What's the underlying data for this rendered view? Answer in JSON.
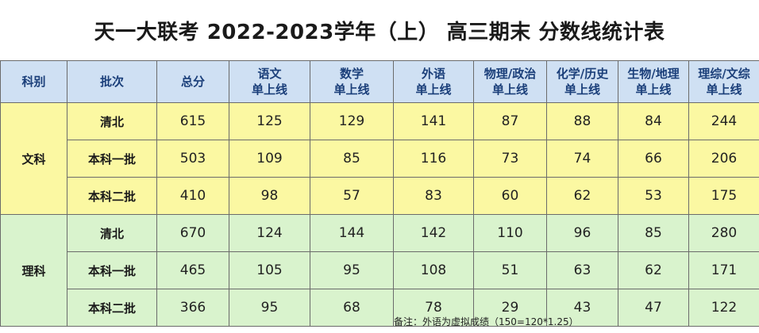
{
  "title": "天一大联考 2022-2023学年（上） 高三期末 分数线统计表",
  "headers": {
    "subject": "科别",
    "batch": "批次",
    "total": "总分",
    "chinese": [
      "语文",
      "单上线"
    ],
    "math": [
      "数学",
      "单上线"
    ],
    "foreign": [
      "外语",
      "单上线"
    ],
    "phys_pol": [
      "物理/政治",
      "单上线"
    ],
    "chem_hist": [
      "化学/历史",
      "单上线"
    ],
    "bio_geo": [
      "生物/地理",
      "单上线"
    ],
    "comp": [
      "理综/文综",
      "单上线"
    ]
  },
  "groups": [
    {
      "subject": "文科",
      "rows": [
        {
          "batch": "清北",
          "total": "615",
          "chinese": "125",
          "math": "129",
          "foreign": "141",
          "phys_pol": "87",
          "chem_hist": "88",
          "bio_geo": "84",
          "comp": "244"
        },
        {
          "batch": "本科一批",
          "total": "503",
          "chinese": "109",
          "math": "85",
          "foreign": "116",
          "phys_pol": "73",
          "chem_hist": "74",
          "bio_geo": "66",
          "comp": "206"
        },
        {
          "batch": "本科二批",
          "total": "410",
          "chinese": "98",
          "math": "57",
          "foreign": "83",
          "phys_pol": "60",
          "chem_hist": "62",
          "bio_geo": "53",
          "comp": "175"
        }
      ]
    },
    {
      "subject": "理科",
      "rows": [
        {
          "batch": "清北",
          "total": "670",
          "chinese": "124",
          "math": "144",
          "foreign": "142",
          "phys_pol": "110",
          "chem_hist": "96",
          "bio_geo": "85",
          "comp": "280"
        },
        {
          "batch": "本科一批",
          "total": "465",
          "chinese": "105",
          "math": "95",
          "foreign": "108",
          "phys_pol": "51",
          "chem_hist": "63",
          "bio_geo": "62",
          "comp": "171"
        },
        {
          "batch": "本科二批",
          "total": "366",
          "chinese": "95",
          "math": "68",
          "foreign": "78",
          "phys_pol": "29",
          "chem_hist": "43",
          "bio_geo": "47",
          "comp": "122"
        }
      ]
    }
  ],
  "note": "备注：外语为虚拟成绩（150=120*1.25）",
  "colors": {
    "header_bg": "#cfe0f3",
    "header_text": "#1b3f7a",
    "wen_bg": "#fbf8a2",
    "li_bg": "#d9f3cd"
  }
}
